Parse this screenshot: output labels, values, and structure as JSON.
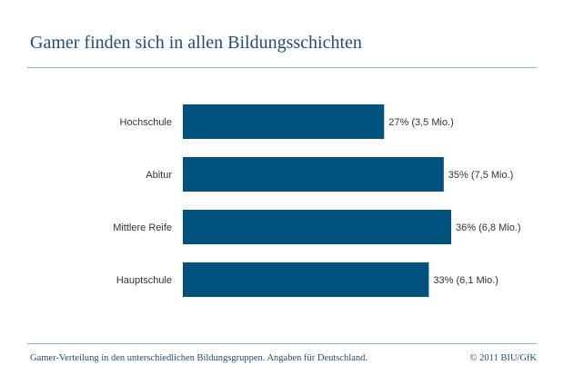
{
  "title": "Gamer finden sich in allen Bildungsschichten",
  "footer": {
    "caption": "Gamer-Verteilung in den unterschiedlichen Bildungsgruppen. Angaben für Deutschland.",
    "copyright": "© 2011 BIU/GfK"
  },
  "colors": {
    "bar": "#00537f",
    "title": "#1f4e79",
    "rule": "#8fb3c9"
  },
  "chart_data": {
    "type": "bar",
    "orientation": "horizontal",
    "title": "Gamer finden sich in allen Bildungsschichten",
    "categories": [
      "Hochschule",
      "Abitur",
      "Mittlere Reife",
      "Hauptschule"
    ],
    "values": [
      27,
      35,
      36,
      33
    ],
    "data_labels": [
      "27% (3,5 Mio.)",
      "35% (7,5 Mio.)",
      "36% (6,8 Mio.)",
      "33% (6,1 Mio.)"
    ],
    "unit": "%",
    "xlim": [
      0,
      36
    ],
    "xlabel": "",
    "ylabel": "",
    "grid": false
  }
}
